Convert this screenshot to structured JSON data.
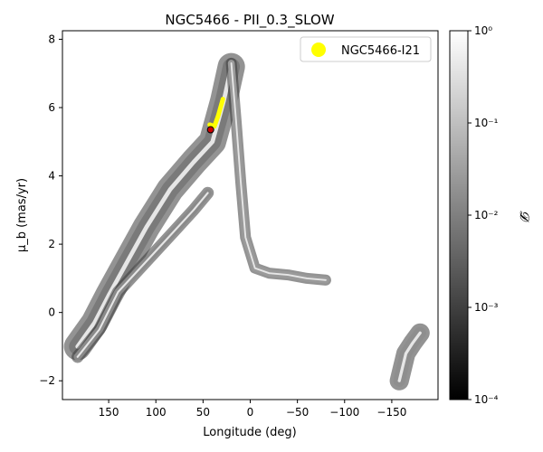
{
  "chart_data": {
    "type": "heatmap",
    "title": "NGC5466 - PII_0.3_SLOW",
    "xlabel": "Longitude (deg)",
    "ylabel": "μ_b (mas/yr)",
    "xlim": [
      199,
      -199
    ],
    "ylim": [
      -2.55,
      8.25
    ],
    "xticks": [
      150,
      100,
      50,
      0,
      -50,
      -100,
      -150
    ],
    "xtick_labels": [
      "150",
      "100",
      "50",
      "0",
      "−50",
      "−100",
      "−150"
    ],
    "yticks": [
      -2,
      0,
      2,
      4,
      6,
      8
    ],
    "ytick_labels": [
      "−2",
      "0",
      "2",
      "4",
      "6",
      "8"
    ],
    "legend": {
      "placement": "top-right",
      "entries": [
        {
          "label": "NGC5466-I21",
          "color": "#ffff00"
        }
      ]
    },
    "colorbar": {
      "label": "𝓓",
      "scale": "log",
      "range": [
        0.0001,
        1
      ],
      "tick_labels": [
        "10⁰",
        "10⁻¹",
        "10⁻²",
        "10⁻³",
        "10⁻⁴"
      ],
      "tick_values": [
        1,
        0.1,
        0.01,
        0.001,
        0.0001
      ],
      "colormap": [
        "#000000",
        "#ffffff"
      ]
    },
    "density_bands": [
      {
        "name": "main-stream-upper",
        "color": "#7a7a7a",
        "spine": [
          [
            183,
            -1.0
          ],
          [
            165,
            -0.3
          ],
          [
            150,
            0.5
          ],
          [
            130,
            1.5
          ],
          [
            110,
            2.5
          ],
          [
            85,
            3.6
          ],
          [
            60,
            4.4
          ],
          [
            40,
            5.0
          ],
          [
            28,
            6.2
          ],
          [
            20,
            7.2
          ]
        ],
        "width": 0.5
      },
      {
        "name": "main-stream-lower",
        "color": "#8a8a8a",
        "spine": [
          [
            183,
            -1.3
          ],
          [
            160,
            -0.5
          ],
          [
            140,
            0.6
          ],
          [
            110,
            1.5
          ],
          [
            80,
            2.4
          ],
          [
            60,
            3.0
          ],
          [
            45,
            3.5
          ]
        ],
        "width": 0.22
      },
      {
        "name": "trailing-arm",
        "color": "#9a9a9a",
        "spine": [
          [
            20,
            7.3
          ],
          [
            15,
            5.6
          ],
          [
            10,
            3.8
          ],
          [
            5,
            2.2
          ],
          [
            -5,
            1.3
          ],
          [
            -20,
            1.15
          ],
          [
            -40,
            1.1
          ],
          [
            -60,
            1.0
          ],
          [
            -80,
            0.95
          ]
        ],
        "width": 0.2
      },
      {
        "name": "wrap-right",
        "color": "#8e8e8e",
        "spine": [
          [
            -158,
            -2.0
          ],
          [
            -165,
            -1.2
          ],
          [
            -172,
            -0.9
          ],
          [
            -180,
            -0.6
          ]
        ],
        "width": 0.35
      }
    ],
    "progenitor": {
      "name": "NGC5466-I21",
      "color": "#ffff00",
      "orbit": [
        [
          43,
          5.5
        ],
        [
          38,
          5.45
        ],
        [
          34,
          5.75
        ],
        [
          31,
          6.05
        ],
        [
          29,
          6.25
        ]
      ],
      "position": [
        42,
        5.35
      ],
      "marker_color": "#cc0000"
    }
  }
}
